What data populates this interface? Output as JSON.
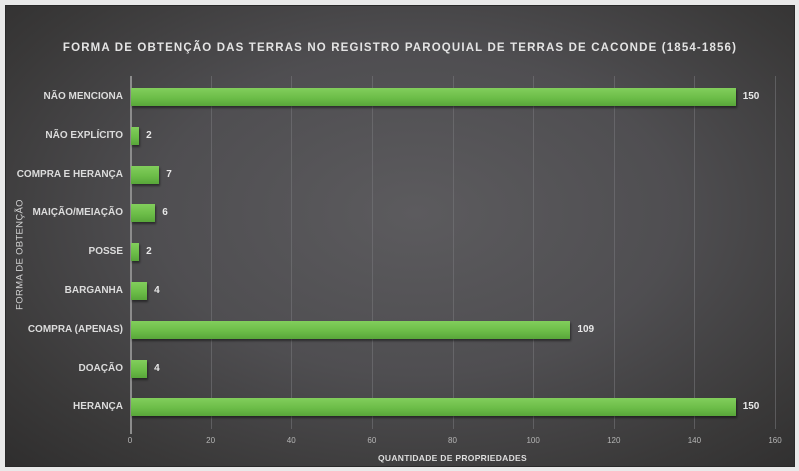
{
  "chart_data": {
    "type": "bar",
    "orientation": "horizontal",
    "title": "FORMA DE OBTENÇÃO DAS TERRAS NO REGISTRO PAROQUIAL DE TERRAS DE CACONDE (1854-1856)",
    "xlabel": "QUANTIDADE DE PROPRIEDADES",
    "ylabel": "FORMA DE OBTENÇÃO",
    "categories": [
      "NÃO MENCIONA",
      "NÃO EXPLÍCITO",
      "COMPRA E HERANÇA",
      "MAIÇÃO/MEIAÇÃO",
      "POSSE",
      "BARGANHA",
      "COMPRA (APENAS)",
      "DOAÇÃO",
      "HERANÇA"
    ],
    "values": [
      150,
      2,
      7,
      6,
      2,
      4,
      109,
      4,
      150
    ],
    "data_labels": [
      "150",
      "2",
      "7",
      "6",
      "2",
      "4",
      "109",
      "4",
      "150"
    ],
    "xlim": [
      0,
      160
    ],
    "xticks": [
      "0",
      "20",
      "40",
      "60",
      "80",
      "100",
      "120",
      "140",
      "160"
    ],
    "grid": "vertical",
    "legend": "none",
    "colors": {
      "bar": "#6cbd48",
      "background": "#4f4e51",
      "text": "#e4e4e4"
    }
  }
}
